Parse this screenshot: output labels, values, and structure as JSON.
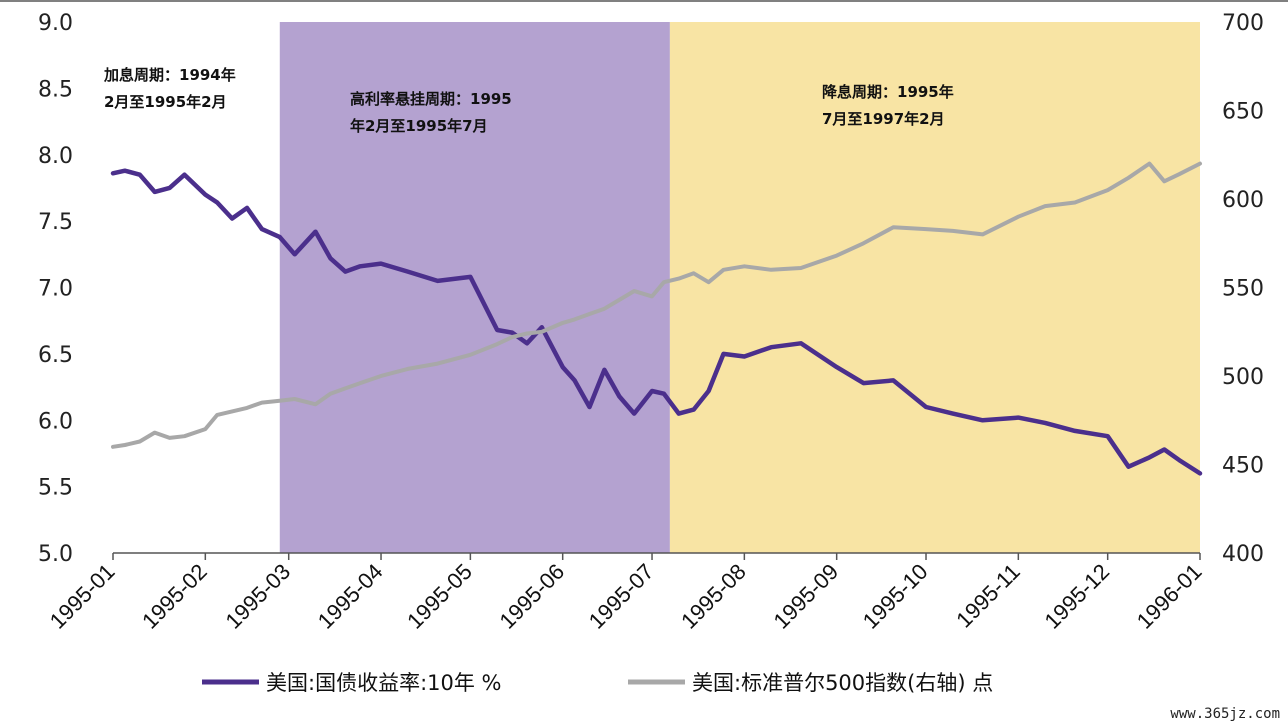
{
  "chart_data": {
    "type": "line",
    "x_ticks": [
      "1995-01",
      "1995-02",
      "1995-03",
      "1995-04",
      "1995-05",
      "1995-06",
      "1995-07",
      "1995-08",
      "1995-09",
      "1995-10",
      "1995-11",
      "1995-12",
      "1996-01"
    ],
    "y_left": {
      "ticks": [
        "9.0",
        "8.5",
        "8.0",
        "7.5",
        "7.0",
        "6.5",
        "6.0",
        "5.5",
        "5.0"
      ],
      "ylim": [
        5.0,
        9.0
      ]
    },
    "y_right": {
      "ticks": [
        "700",
        "650",
        "600",
        "550",
        "500",
        "450",
        "400"
      ],
      "ylim": [
        400,
        700
      ]
    },
    "shaded_regions": [
      {
        "start": "1995-02-26",
        "end": "1995-07-07",
        "color": "#b4a2d0"
      },
      {
        "start": "1995-07-07",
        "end": "1996-01-01",
        "color": "#f8e4a4"
      }
    ],
    "annotations": [
      {
        "lines": [
          "加息周期：1994年",
          "2月至1995年2月"
        ]
      },
      {
        "lines": [
          "高利率悬挂周期：1995",
          "年2月至1995年7月"
        ]
      },
      {
        "lines": [
          "降息周期：1995年",
          "7月至1997年2月"
        ]
      }
    ],
    "series": [
      {
        "name": "美国:国债收益率:10年 %",
        "axis": "left",
        "color": "#4b2f8c",
        "x": [
          "1995-01-01",
          "1995-01-05",
          "1995-01-10",
          "1995-01-15",
          "1995-01-20",
          "1995-01-25",
          "1995-02-01",
          "1995-02-05",
          "1995-02-10",
          "1995-02-15",
          "1995-02-20",
          "1995-02-26",
          "1995-03-03",
          "1995-03-10",
          "1995-03-15",
          "1995-03-20",
          "1995-03-25",
          "1995-04-01",
          "1995-04-10",
          "1995-04-20",
          "1995-05-01",
          "1995-05-10",
          "1995-05-15",
          "1995-05-20",
          "1995-05-25",
          "1995-06-01",
          "1995-06-05",
          "1995-06-10",
          "1995-06-15",
          "1995-06-20",
          "1995-06-25",
          "1995-07-01",
          "1995-07-05",
          "1995-07-10",
          "1995-07-15",
          "1995-07-20",
          "1995-07-25",
          "1995-08-01",
          "1995-08-10",
          "1995-08-20",
          "1995-09-01",
          "1995-09-10",
          "1995-09-20",
          "1995-10-01",
          "1995-10-10",
          "1995-10-20",
          "1995-11-01",
          "1995-11-10",
          "1995-11-20",
          "1995-12-01",
          "1995-12-08",
          "1995-12-15",
          "1995-12-20",
          "1995-12-25",
          "1996-01-01"
        ],
        "values": [
          7.86,
          7.88,
          7.85,
          7.72,
          7.75,
          7.85,
          7.7,
          7.64,
          7.52,
          7.6,
          7.44,
          7.38,
          7.25,
          7.42,
          7.22,
          7.12,
          7.16,
          7.18,
          7.12,
          7.05,
          7.08,
          6.68,
          6.66,
          6.58,
          6.7,
          6.4,
          6.3,
          6.1,
          6.38,
          6.18,
          6.05,
          6.22,
          6.2,
          6.05,
          6.08,
          6.22,
          6.5,
          6.48,
          6.55,
          6.58,
          6.4,
          6.28,
          6.3,
          6.1,
          6.05,
          6.0,
          6.02,
          5.98,
          5.92,
          5.88,
          5.65,
          5.72,
          5.78,
          5.7,
          5.6
        ]
      },
      {
        "name": "美国:标准普尔500指数(右轴) 点",
        "axis": "right",
        "color": "#a8a8a8",
        "x": [
          "1995-01-01",
          "1995-01-05",
          "1995-01-10",
          "1995-01-15",
          "1995-01-20",
          "1995-01-25",
          "1995-02-01",
          "1995-02-05",
          "1995-02-10",
          "1995-02-15",
          "1995-02-20",
          "1995-02-26",
          "1995-03-03",
          "1995-03-10",
          "1995-03-15",
          "1995-03-20",
          "1995-03-25",
          "1995-04-01",
          "1995-04-10",
          "1995-04-20",
          "1995-05-01",
          "1995-05-10",
          "1995-05-15",
          "1995-05-20",
          "1995-05-25",
          "1995-06-01",
          "1995-06-05",
          "1995-06-10",
          "1995-06-15",
          "1995-06-20",
          "1995-06-25",
          "1995-07-01",
          "1995-07-05",
          "1995-07-10",
          "1995-07-15",
          "1995-07-20",
          "1995-07-25",
          "1995-08-01",
          "1995-08-10",
          "1995-08-20",
          "1995-09-01",
          "1995-09-10",
          "1995-09-20",
          "1995-10-01",
          "1995-10-10",
          "1995-10-20",
          "1995-11-01",
          "1995-11-10",
          "1995-11-20",
          "1995-12-01",
          "1995-12-08",
          "1995-12-15",
          "1995-12-20",
          "1995-12-25",
          "1996-01-01"
        ],
        "values": [
          460,
          461,
          463,
          468,
          465,
          466,
          470,
          478,
          480,
          482,
          485,
          486,
          487,
          484,
          490,
          493,
          496,
          500,
          504,
          507,
          512,
          518,
          522,
          524,
          525,
          530,
          532,
          535,
          538,
          543,
          548,
          545,
          553,
          555,
          558,
          553,
          560,
          562,
          560,
          561,
          568,
          575,
          584,
          583,
          582,
          580,
          590,
          596,
          598,
          605,
          612,
          620,
          610,
          614,
          620
        ]
      }
    ]
  },
  "legend": {
    "items": [
      {
        "label": "美国:国债收益率:10年 %",
        "color": "#4b2f8c"
      },
      {
        "label": "美国:标准普尔500指数(右轴)   点",
        "color": "#a8a8a8"
      }
    ]
  },
  "watermark": "www.365jz.com"
}
